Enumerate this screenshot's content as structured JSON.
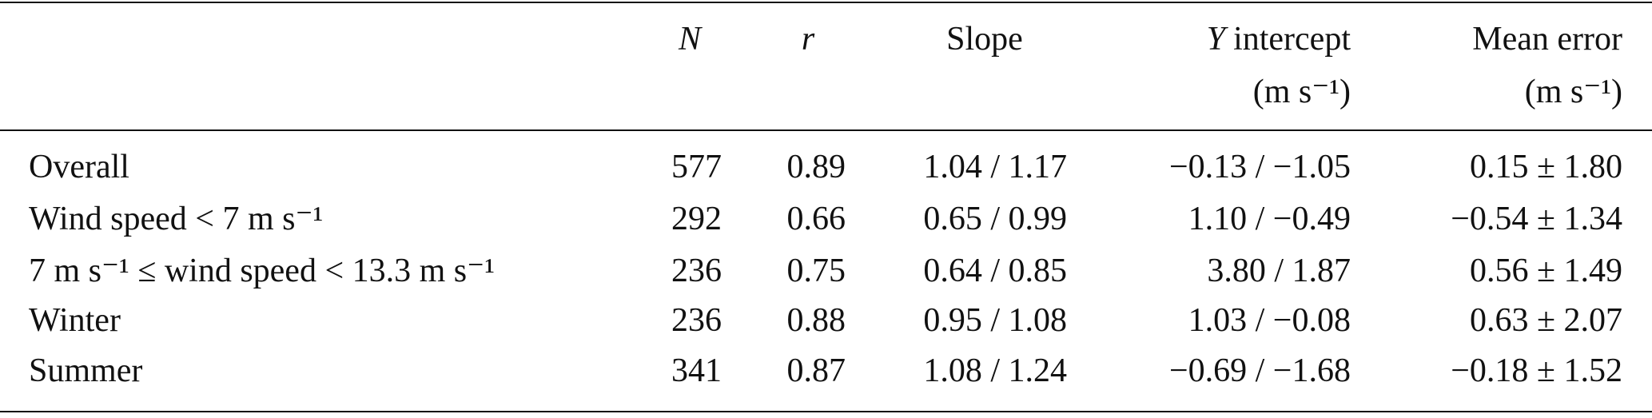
{
  "table": {
    "header": {
      "n": "N",
      "r": "r",
      "slope": "Slope",
      "y_intercept": {
        "symbol": "Y",
        "label": "intercept",
        "unit": "(m s⁻¹)"
      },
      "mean_error": {
        "label": "Mean error",
        "unit": "(m s⁻¹)"
      }
    },
    "rows": [
      [
        "Overall",
        "577",
        "0.89",
        "1.04 / 1.17",
        "−0.13 / −1.05",
        "0.15 ± 1.80"
      ],
      [
        "Wind speed < 7 m s⁻¹",
        "292",
        "0.66",
        "0.65 / 0.99",
        "1.10 / −0.49",
        "−0.54 ± 1.34"
      ],
      [
        "7 m s⁻¹ ≤ wind speed < 13.3 m s⁻¹",
        "236",
        "0.75",
        "0.64 / 0.85",
        "3.80 / 1.87",
        "0.56 ± 1.49"
      ],
      [
        "Winter",
        "236",
        "0.88",
        "0.95 / 1.08",
        "1.03 / −0.08",
        "0.63 ± 2.07"
      ],
      [
        "Summer",
        "341",
        "0.87",
        "1.08 / 1.24",
        "−0.69 / −1.68",
        "−0.18 ± 1.52"
      ]
    ]
  }
}
